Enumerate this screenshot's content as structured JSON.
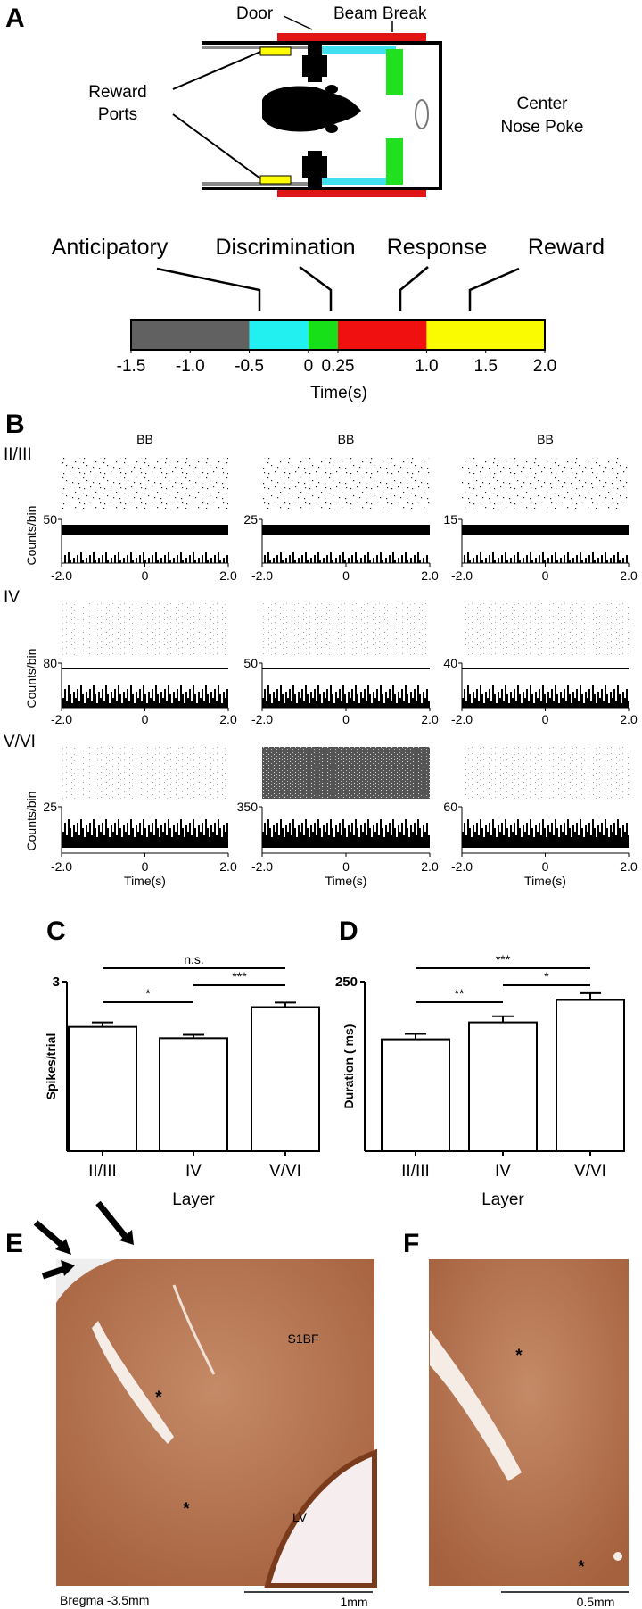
{
  "panel_labels": [
    "A",
    "B",
    "C",
    "D",
    "E",
    "F"
  ],
  "apparatus": {
    "door": "Door",
    "beam_break": "Beam Break",
    "reward_ports": [
      "Reward",
      "Ports"
    ],
    "center_nose_poke": [
      "Center",
      "Nose Poke"
    ]
  },
  "timeline": {
    "phases": [
      "Anticipatory",
      "Discrimination",
      "Response",
      "Reward"
    ],
    "segments": [
      {
        "start": -1.5,
        "end": -0.5,
        "color": "#616161"
      },
      {
        "start": -0.5,
        "end": 0,
        "color": "#22f0f0"
      },
      {
        "start": 0,
        "end": 0.25,
        "color": "#18e018"
      },
      {
        "start": 0.25,
        "end": 1.0,
        "color": "#f01010"
      },
      {
        "start": 1.0,
        "end": 2.0,
        "color": "#fafa00"
      }
    ],
    "xlim": [
      -1.5,
      2.0
    ],
    "xticks": [
      -1.5,
      {
        "value": -1.0,
        "label": "-1.0"
      },
      -0.5,
      0,
      0.25,
      {
        "value": 1.0,
        "label": "1.0"
      },
      1.5,
      {
        "value": 2.0,
        "label": "2.0"
      }
    ],
    "xlabel": "Time(s)"
  },
  "rasters": {
    "column_title": "BB",
    "ylabel": "Counts/bin",
    "xlabel": "Time(s)",
    "xticks": [
      {
        "value": -2.0,
        "label": "-2.0"
      },
      0,
      {
        "value": 2.0,
        "label": "2.0"
      }
    ],
    "rows": [
      {
        "layer": "II/III",
        "ymax": [
          50,
          25,
          15
        ]
      },
      {
        "layer": "IV",
        "ymax": [
          80,
          50,
          40
        ]
      },
      {
        "layer": "V/VI",
        "ymax": [
          25,
          350,
          60
        ]
      }
    ]
  },
  "chart_data": [
    {
      "type": "bar",
      "ylabel": "Spikes/trial",
      "xlabel": "Layer",
      "categories": [
        "II/III",
        "IV",
        "V/VI"
      ],
      "values": [
        2.2,
        2.0,
        2.55
      ],
      "errors": [
        0.08,
        0.06,
        0.08
      ],
      "ylim": [
        0,
        3
      ],
      "yticks": [
        3
      ],
      "comparisons": [
        {
          "from": 0,
          "to": 2,
          "label": "n.s."
        },
        {
          "from": 1,
          "to": 2,
          "label": "***"
        },
        {
          "from": 0,
          "to": 1,
          "label": "*"
        }
      ]
    },
    {
      "type": "bar",
      "ylabel": "Duration ( ms)",
      "xlabel": "Layer",
      "categories": [
        "II/III",
        "IV",
        "V/VI"
      ],
      "values": [
        165,
        190,
        223
      ],
      "errors": [
        8,
        9,
        10
      ],
      "ylim": [
        0,
        250
      ],
      "yticks": [
        250
      ],
      "comparisons": [
        {
          "from": 0,
          "to": 2,
          "label": "***"
        },
        {
          "from": 1,
          "to": 2,
          "label": "*"
        },
        {
          "from": 0,
          "to": 1,
          "label": "**"
        }
      ]
    }
  ],
  "histology": {
    "E": {
      "region": "S1BF",
      "ventricle": "LV",
      "markers": [
        "*",
        "*"
      ],
      "caption": "Bregma -3.5mm",
      "scale": "1mm"
    },
    "F": {
      "markers": [
        "*",
        "*"
      ],
      "scale": "0.5mm"
    }
  }
}
